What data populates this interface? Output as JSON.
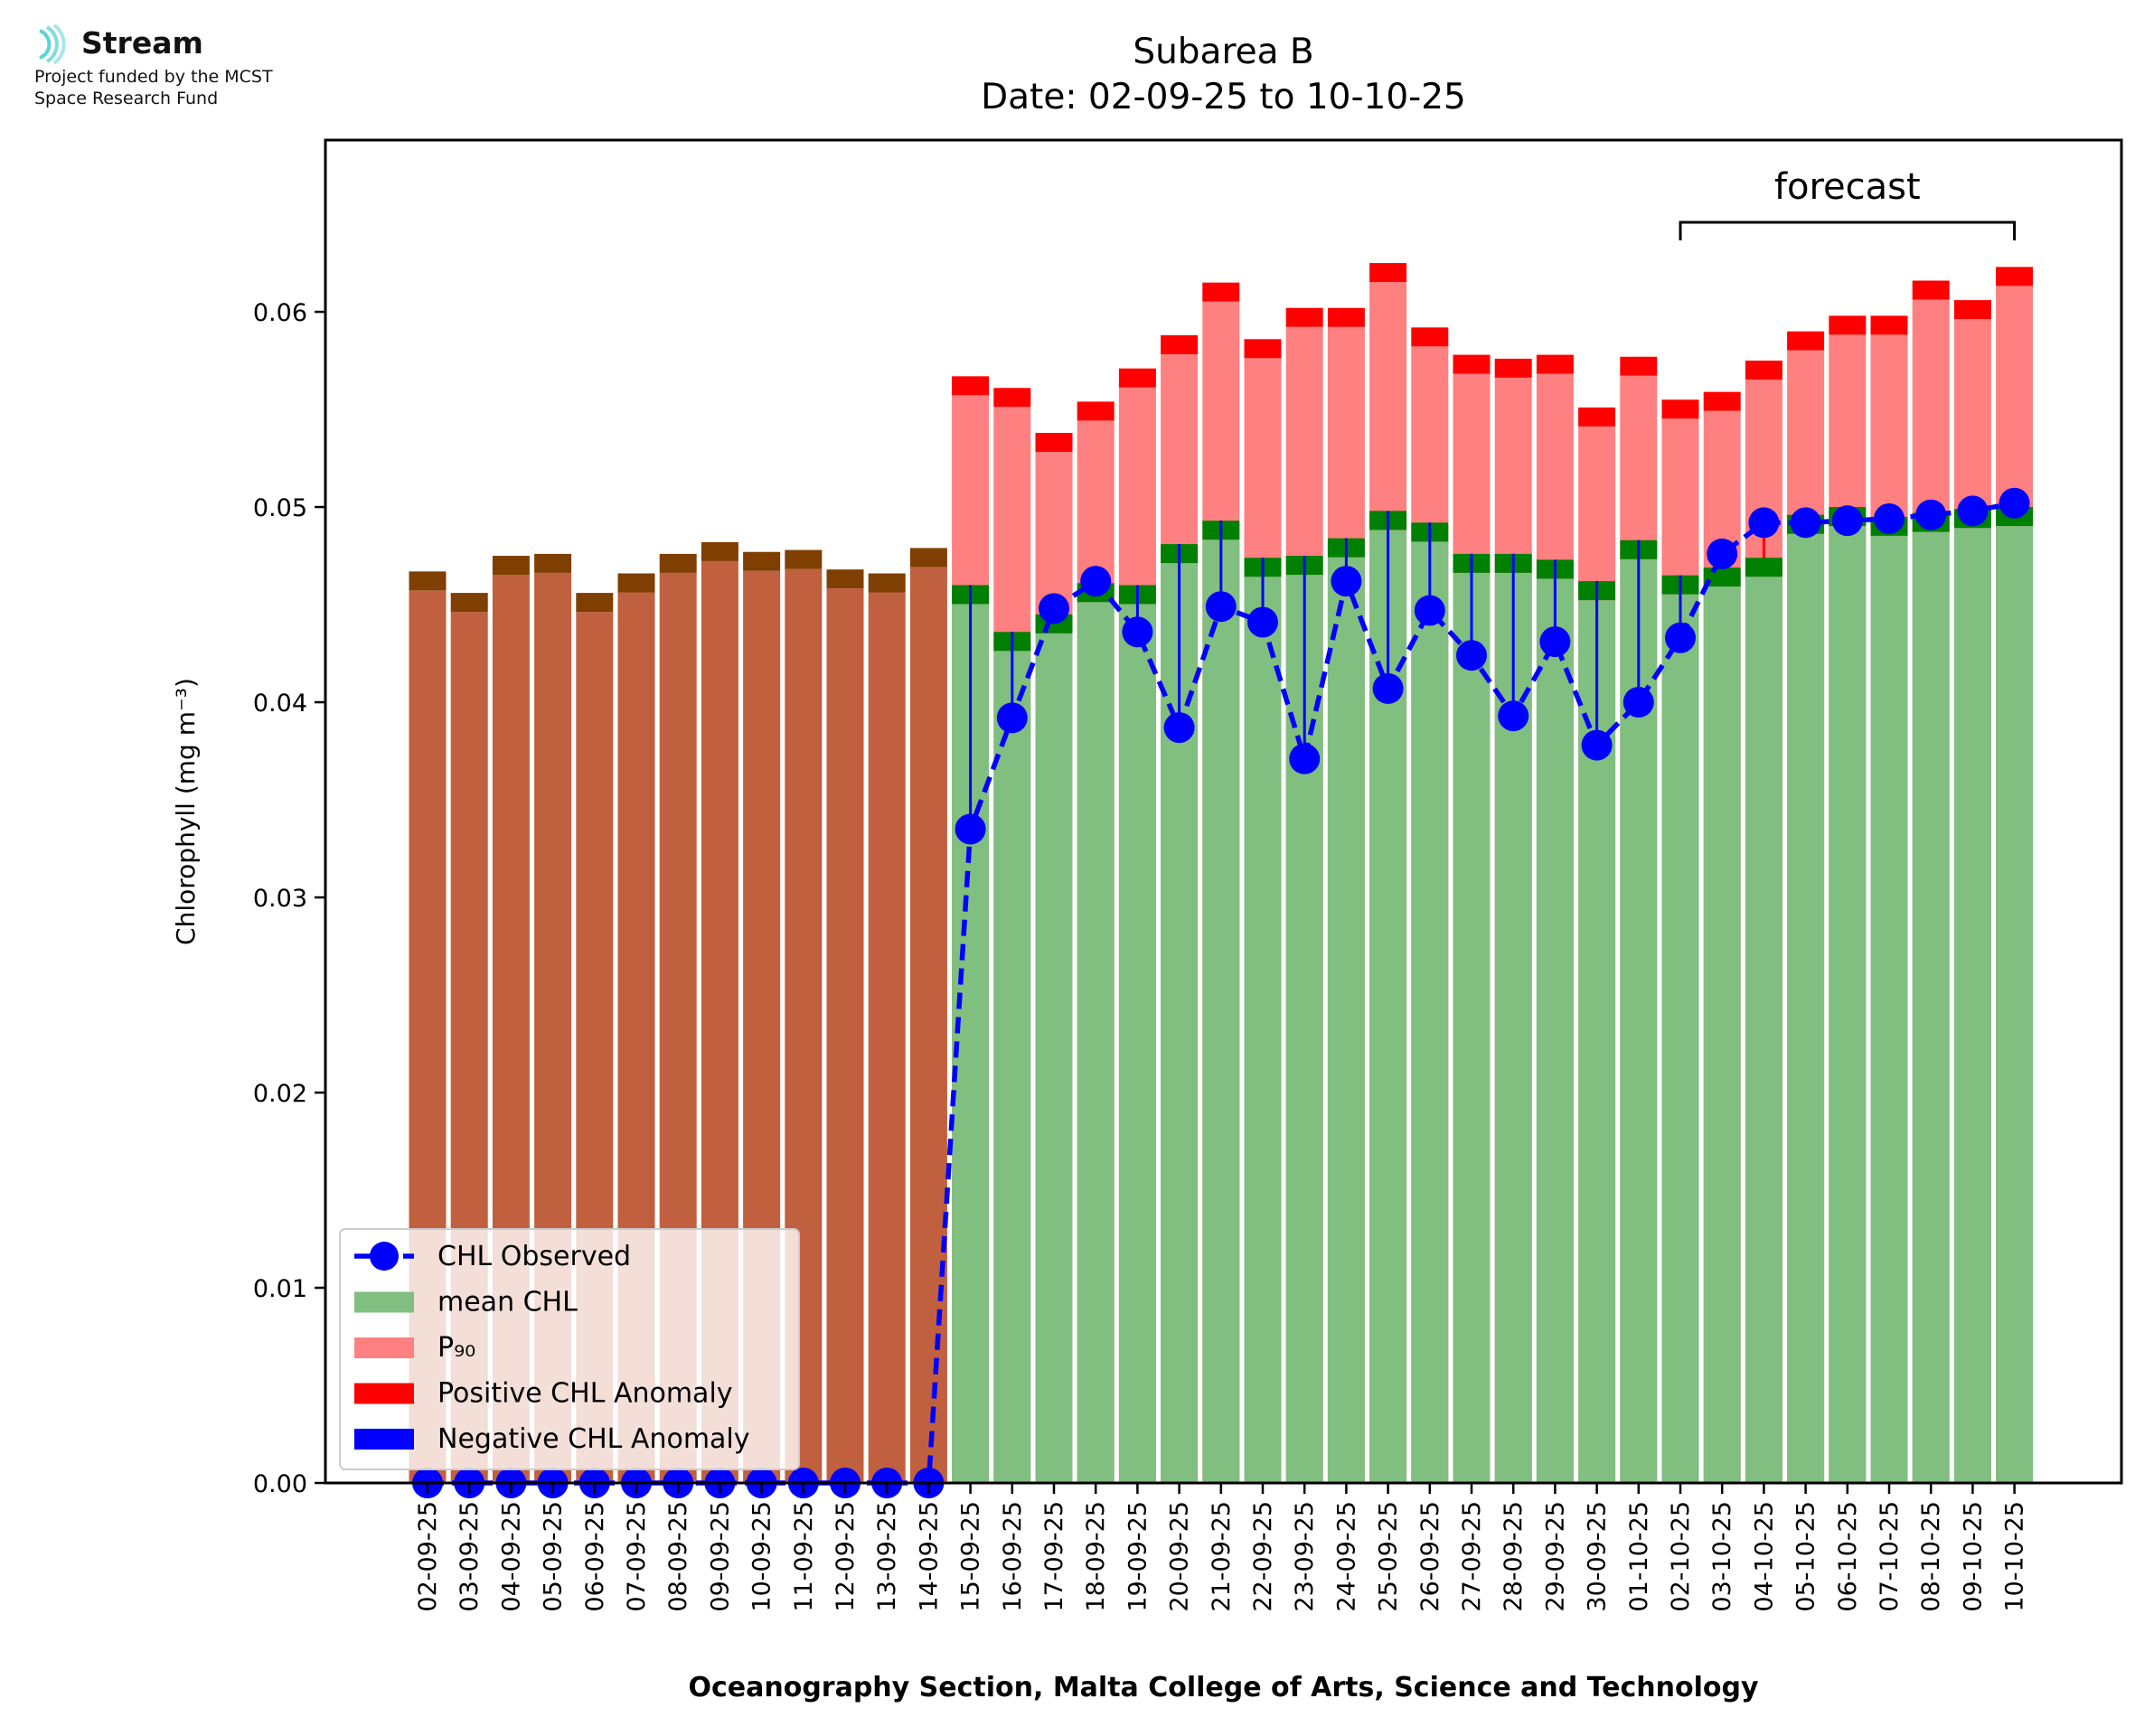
{
  "logo": {
    "name": "Stream",
    "line1": "Project funded by the MCST",
    "line2": "Space Research Fund"
  },
  "chart_data": {
    "type": "bar",
    "title": "Subarea B",
    "subtitle": "Date: 02-09-25 to 10-10-25",
    "xlabel": "Oceanography Section, Malta College of Arts, Science and Technology",
    "ylabel": "Chlorophyll (mg m⁻³)",
    "ylim": [
      0,
      0.0688
    ],
    "yticks": [
      0.0,
      0.01,
      0.02,
      0.03,
      0.04,
      0.05,
      0.06
    ],
    "ytick_labels": [
      "0.00",
      "0.01",
      "0.02",
      "0.03",
      "0.04",
      "0.05",
      "0.06"
    ],
    "grid": false,
    "legend_position": "lower-left",
    "annotation": "forecast",
    "forecast_range": [
      "02-10-25",
      "10-10-25"
    ],
    "no_data_range": [
      "02-09-25",
      "14-09-25"
    ],
    "colors": {
      "mean": "#80bf80",
      "mean_cap": "#008000",
      "p90": "#ff8080",
      "p90_cap": "#ff0000",
      "no_data": "#c0603f",
      "no_data_cap": "#7f3f00",
      "observed": "#0000ff"
    },
    "categories": [
      "02-09-25",
      "03-09-25",
      "04-09-25",
      "05-09-25",
      "06-09-25",
      "07-09-25",
      "08-09-25",
      "09-09-25",
      "10-09-25",
      "11-09-25",
      "12-09-25",
      "13-09-25",
      "14-09-25",
      "15-09-25",
      "16-09-25",
      "17-09-25",
      "18-09-25",
      "19-09-25",
      "20-09-25",
      "21-09-25",
      "22-09-25",
      "23-09-25",
      "24-09-25",
      "25-09-25",
      "26-09-25",
      "27-09-25",
      "28-09-25",
      "29-09-25",
      "30-09-25",
      "01-10-25",
      "02-10-25",
      "03-10-25",
      "04-10-25",
      "05-10-25",
      "06-10-25",
      "07-10-25",
      "08-10-25",
      "09-10-25",
      "10-10-25"
    ],
    "series": [
      {
        "name": "CHL Observed",
        "values": [
          0,
          0,
          0,
          0,
          0,
          0,
          0,
          0,
          0,
          0,
          0,
          0,
          0,
          0.0335,
          0.0392,
          0.0448,
          0.0462,
          0.0436,
          0.0387,
          0.0449,
          0.0441,
          0.0371,
          0.0462,
          0.0407,
          0.0447,
          0.0424,
          0.0393,
          0.0431,
          0.0378,
          0.04,
          0.0433,
          0.0476,
          0.0492,
          0.0492,
          0.0493,
          0.0494,
          0.0496,
          0.0498,
          0.0502
        ]
      },
      {
        "name": "mean CHL",
        "values": [
          0.0467,
          0.0456,
          0.0475,
          0.0476,
          0.0456,
          0.0466,
          0.0476,
          0.0482,
          0.0477,
          0.0478,
          0.0468,
          0.0466,
          0.0479,
          0.046,
          0.0436,
          0.0445,
          0.0461,
          0.046,
          0.0481,
          0.0493,
          0.0474,
          0.0475,
          0.0484,
          0.0498,
          0.0492,
          0.0476,
          0.0476,
          0.0473,
          0.0462,
          0.0483,
          0.0465,
          0.0469,
          0.0474,
          0.0496,
          0.05,
          0.0495,
          0.0497,
          0.0499,
          0.05
        ]
      },
      {
        "name": "P₉₀",
        "values": [
          null,
          null,
          null,
          null,
          null,
          null,
          null,
          null,
          null,
          null,
          null,
          null,
          null,
          0.0567,
          0.0561,
          0.0538,
          0.0554,
          0.0571,
          0.0588,
          0.0615,
          0.0586,
          0.0602,
          0.0602,
          0.0625,
          0.0592,
          0.0578,
          0.0576,
          0.0578,
          0.0551,
          0.0577,
          0.0555,
          0.0559,
          0.0575,
          0.059,
          0.0598,
          0.0598,
          0.0616,
          0.0606,
          0.0623
        ]
      }
    ],
    "legend": [
      {
        "label": "CHL Observed",
        "kind": "line-marker"
      },
      {
        "label": "mean CHL",
        "kind": "patch-mean"
      },
      {
        "label": "P₉₀",
        "kind": "patch-p90"
      },
      {
        "label": "Positive CHL Anomaly",
        "kind": "patch-pos"
      },
      {
        "label": "Negative CHL Anomaly",
        "kind": "patch-neg"
      }
    ]
  }
}
